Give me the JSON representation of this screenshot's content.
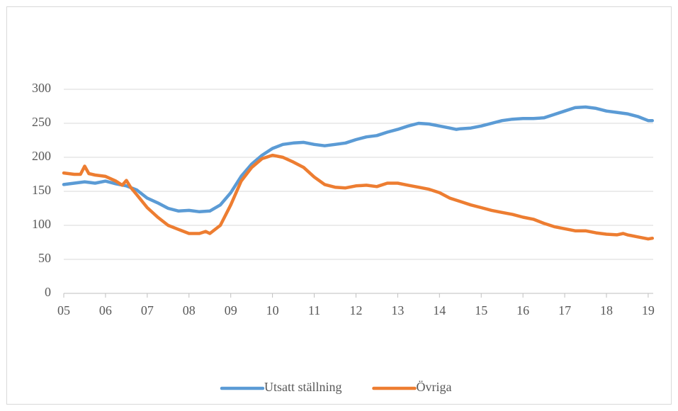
{
  "chart_data": {
    "type": "line",
    "xlim": [
      5,
      19.12
    ],
    "xticks": [
      {
        "value": 5,
        "label": "05"
      },
      {
        "value": 6,
        "label": "06"
      },
      {
        "value": 7,
        "label": "07"
      },
      {
        "value": 8,
        "label": "08"
      },
      {
        "value": 9,
        "label": "09"
      },
      {
        "value": 10,
        "label": "10"
      },
      {
        "value": 11,
        "label": "11"
      },
      {
        "value": 12,
        "label": "12"
      },
      {
        "value": 13,
        "label": "13"
      },
      {
        "value": 14,
        "label": "14"
      },
      {
        "value": 15,
        "label": "15"
      },
      {
        "value": 16,
        "label": "16"
      },
      {
        "value": 17,
        "label": "17"
      },
      {
        "value": 18,
        "label": "18"
      },
      {
        "value": 19,
        "label": "19"
      }
    ],
    "ylim": [
      0,
      300
    ],
    "yticks": [
      0,
      50,
      100,
      150,
      200,
      250,
      300
    ],
    "grid": true,
    "legend": "bottom",
    "series": [
      {
        "name": "Utsatt ställning",
        "color": "#5b9bd5",
        "x": [
          5.0,
          5.25,
          5.5,
          5.75,
          6.0,
          6.25,
          6.5,
          6.75,
          7.0,
          7.25,
          7.5,
          7.75,
          8.0,
          8.25,
          8.5,
          8.75,
          9.0,
          9.25,
          9.5,
          9.75,
          10.0,
          10.25,
          10.5,
          10.75,
          11.0,
          11.25,
          11.5,
          11.75,
          12.0,
          12.25,
          12.5,
          12.75,
          13.0,
          13.25,
          13.5,
          13.75,
          14.0,
          14.25,
          14.4,
          14.5,
          14.75,
          15.0,
          15.25,
          15.5,
          15.75,
          16.0,
          16.25,
          16.5,
          16.75,
          17.0,
          17.25,
          17.5,
          17.75,
          18.0,
          18.25,
          18.5,
          18.75,
          19.0,
          19.1
        ],
        "values": [
          160,
          162,
          164,
          162,
          165,
          161,
          158,
          152,
          140,
          133,
          125,
          121,
          122,
          120,
          121,
          130,
          148,
          172,
          190,
          203,
          213,
          219,
          221,
          222,
          219,
          217,
          219,
          221,
          226,
          230,
          232,
          237,
          241,
          246,
          250,
          249,
          246,
          243,
          241,
          242,
          243,
          246,
          250,
          254,
          256,
          257,
          257,
          258,
          263,
          268,
          273,
          274,
          272,
          268,
          266,
          264,
          260,
          254,
          254
        ]
      },
      {
        "name": "Övriga",
        "color": "#ed7d31",
        "x": [
          5.0,
          5.25,
          5.4,
          5.5,
          5.6,
          5.75,
          6.0,
          6.25,
          6.4,
          6.5,
          6.6,
          6.75,
          7.0,
          7.25,
          7.5,
          7.75,
          8.0,
          8.25,
          8.4,
          8.5,
          8.75,
          9.0,
          9.25,
          9.5,
          9.75,
          10.0,
          10.25,
          10.5,
          10.75,
          11.0,
          11.25,
          11.5,
          11.75,
          12.0,
          12.25,
          12.5,
          12.75,
          13.0,
          13.25,
          13.5,
          13.75,
          14.0,
          14.25,
          14.5,
          14.75,
          15.0,
          15.25,
          15.5,
          15.75,
          16.0,
          16.25,
          16.5,
          16.75,
          17.0,
          17.25,
          17.5,
          17.75,
          18.0,
          18.25,
          18.4,
          18.5,
          18.75,
          19.0,
          19.1
        ],
        "values": [
          177,
          175,
          175,
          187,
          176,
          174,
          172,
          165,
          159,
          166,
          156,
          145,
          126,
          112,
          100,
          94,
          88,
          88,
          91,
          88,
          100,
          130,
          165,
          185,
          198,
          203,
          200,
          193,
          185,
          171,
          160,
          156,
          155,
          158,
          159,
          157,
          162,
          162,
          159,
          156,
          153,
          148,
          140,
          135,
          130,
          126,
          122,
          119,
          116,
          112,
          109,
          103,
          98,
          95,
          92,
          92,
          89,
          87,
          86,
          88,
          86,
          83,
          80,
          81
        ]
      }
    ]
  }
}
